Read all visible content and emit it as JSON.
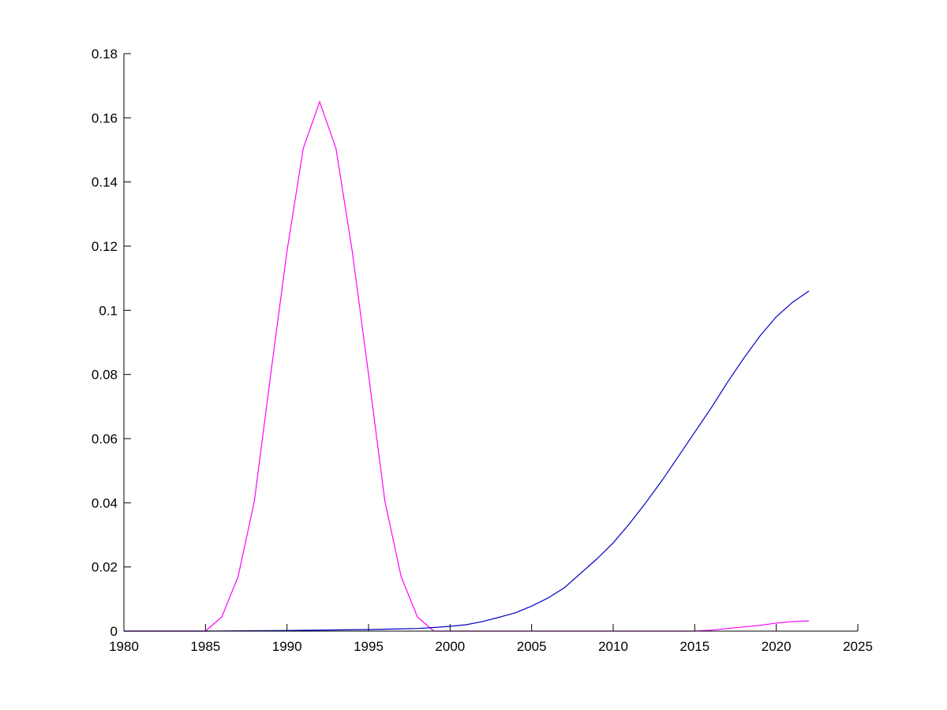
{
  "chart_data": {
    "type": "line",
    "title": "",
    "xlabel": "",
    "ylabel": "",
    "xlim": [
      1980,
      2025
    ],
    "ylim": [
      0,
      0.18
    ],
    "grid": false,
    "xticks": [
      "1980",
      "1985",
      "1990",
      "1995",
      "2000",
      "2005",
      "2010",
      "2015",
      "2020",
      "2025"
    ],
    "yticks": [
      "0",
      "0.02",
      "0.04",
      "0.06",
      "0.08",
      "0.1",
      "0.12",
      "0.14",
      "0.16",
      "0.18"
    ],
    "series": [
      {
        "color": "#ff00ff",
        "x": [
          1980,
          1985,
          1986,
          1987,
          1988,
          1989,
          1990,
          1991,
          1992,
          1993,
          1994,
          1995,
          1996,
          1997,
          1998,
          1999,
          2000,
          2005,
          2010,
          2015,
          2016,
          2017,
          2018,
          2019,
          2020,
          2021,
          2022
        ],
        "y": [
          0,
          0,
          0.0044,
          0.017,
          0.0405,
          0.08,
          0.1185,
          0.1505,
          0.165,
          0.1505,
          0.1185,
          0.08,
          0.0405,
          0.017,
          0.0044,
          0,
          0,
          0,
          0,
          0,
          0.0003,
          0.0008,
          0.0013,
          0.0018,
          0.0025,
          0.003,
          0.0032
        ]
      },
      {
        "color": "#0000c8",
        "x": [
          1980,
          1985,
          1990,
          1995,
          1998,
          1999,
          2000,
          2001,
          2002,
          2003,
          2004,
          2005,
          2006,
          2007,
          2008,
          2009,
          2010,
          2011,
          2012,
          2013,
          2014,
          2015,
          2016,
          2017,
          2018,
          2019,
          2020,
          2021,
          2022
        ],
        "y": [
          0,
          0,
          0.0002,
          0.0005,
          0.0008,
          0.0011,
          0.0015,
          0.002,
          0.003,
          0.0043,
          0.0057,
          0.0078,
          0.0103,
          0.0135,
          0.018,
          0.0225,
          0.0275,
          0.0335,
          0.04,
          0.047,
          0.0545,
          0.062,
          0.0695,
          0.0775,
          0.085,
          0.092,
          0.098,
          0.1025,
          0.106
        ]
      }
    ]
  }
}
